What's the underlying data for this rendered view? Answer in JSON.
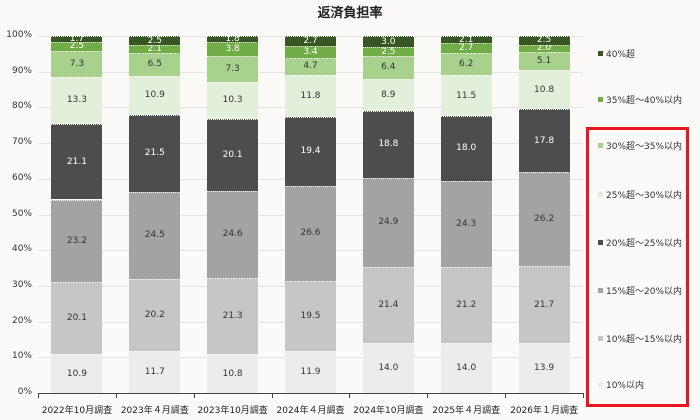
{
  "chart_data": {
    "type": "bar",
    "stacked": true,
    "title": "返済負担率",
    "xlabel": "",
    "ylabel": "",
    "ylim": [
      0,
      100
    ],
    "yticks": [
      "0%",
      "10%",
      "20%",
      "30%",
      "40%",
      "50%",
      "60%",
      "70%",
      "80%",
      "90%",
      "100%"
    ],
    "grid": true,
    "legend_position": "right",
    "categories": [
      "2022年10月調査",
      "2023年４月調査",
      "2023年10月調査",
      "2024年４月調査",
      "2024年10月調査",
      "2025年４月調査",
      "2026年１月調査"
    ],
    "series": [
      {
        "name": "10%以内",
        "color": "#ececec",
        "text_color": "#333333",
        "values": [
          10.9,
          11.7,
          10.8,
          11.9,
          14.0,
          14.0,
          13.9
        ]
      },
      {
        "name": "10%超～15%以内",
        "color": "#c6c6c6",
        "text_color": "#333333",
        "values": [
          20.1,
          20.2,
          21.3,
          19.5,
          21.4,
          21.2,
          21.7
        ]
      },
      {
        "name": "15%超～20%以内",
        "color": "#a3a3a3",
        "text_color": "#333333",
        "values": [
          23.2,
          24.5,
          24.6,
          26.6,
          24.9,
          24.3,
          26.2
        ]
      },
      {
        "name": "20%超～25%以内",
        "color": "#4d4d4d",
        "text_color": "#ffffff",
        "values": [
          21.1,
          21.5,
          20.1,
          19.4,
          18.8,
          18.0,
          17.8
        ]
      },
      {
        "name": "25%超～30%以内",
        "color": "#e2efdb",
        "text_color": "#333333",
        "values": [
          13.3,
          10.9,
          10.3,
          11.8,
          8.9,
          11.5,
          10.8
        ]
      },
      {
        "name": "30%超～35%以内",
        "color": "#a9d18e",
        "text_color": "#333333",
        "values": [
          7.3,
          6.5,
          7.3,
          4.7,
          6.4,
          6.2,
          5.1
        ]
      },
      {
        "name": "35%超～40%以内",
        "color": "#70ad47",
        "text_color": "#ffffff",
        "values": [
          2.5,
          2.1,
          3.8,
          3.4,
          2.5,
          2.7,
          2.0
        ]
      },
      {
        "name": "40%超",
        "color": "#375623",
        "text_color": "#ffffff",
        "values": [
          1.7,
          2.5,
          1.8,
          2.7,
          3.0,
          2.1,
          2.5
        ]
      }
    ],
    "legend_order": [
      "40%超",
      "35%超～40%以内",
      "30%超～35%以内",
      "25%超～30%以内",
      "20%超～25%以内",
      "15%超～20%以内",
      "10%超～15%以内",
      "10%以内"
    ],
    "highlight_box_color": "#e8161e",
    "highlighted_legend_entries": [
      "30%超～35%以内",
      "25%超～30%以内",
      "20%超～25%以内",
      "15%超～20%以内",
      "10%超～15%以内",
      "10%以内"
    ]
  }
}
